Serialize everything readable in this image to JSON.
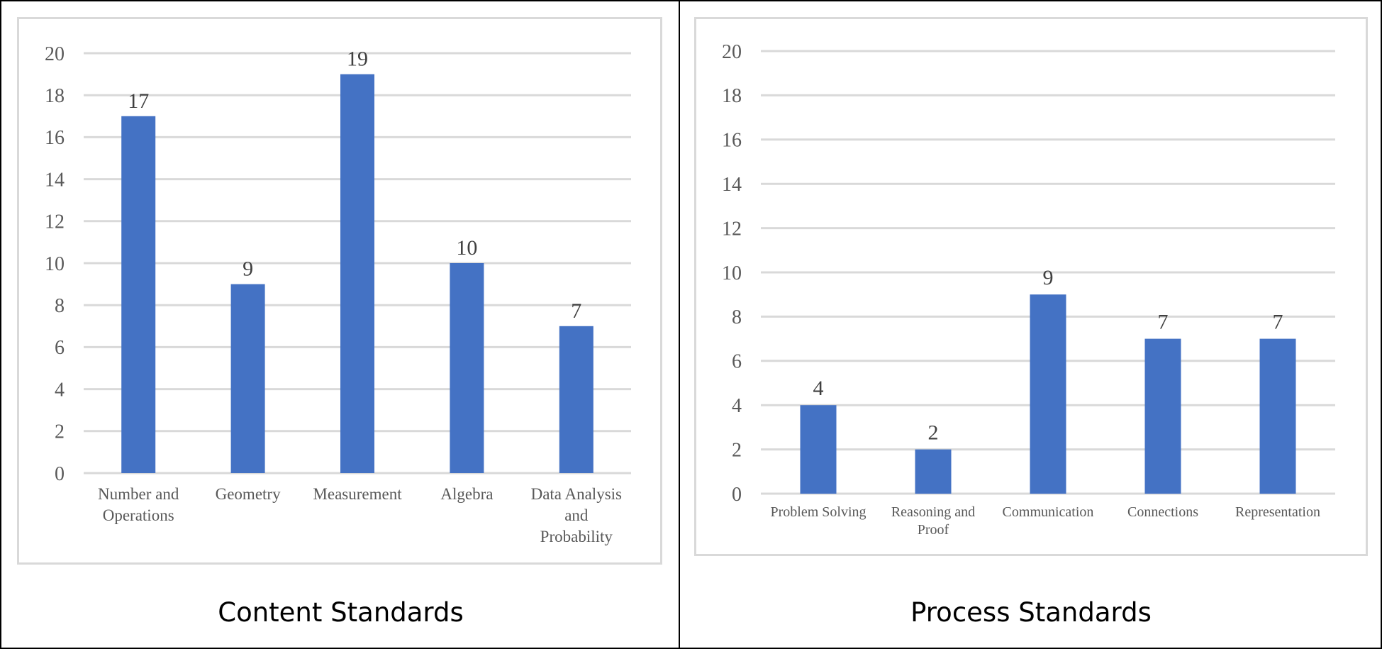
{
  "chart_data": [
    {
      "type": "bar",
      "title": "Content Standards",
      "categories": [
        "Number and Operations",
        "Geometry",
        "Measurement",
        "Algebra",
        "Data Analysis and Probability"
      ],
      "category_lines": [
        [
          "Number and",
          "Operations"
        ],
        [
          "Geometry"
        ],
        [
          "Measurement"
        ],
        [
          "Algebra"
        ],
        [
          "Data Analysis",
          "and",
          "Probability"
        ]
      ],
      "values": [
        17,
        9,
        19,
        10,
        7
      ],
      "yticks": [
        "0",
        "2",
        "4",
        "6",
        "8",
        "10",
        "12",
        "14",
        "16",
        "18",
        "20"
      ],
      "ylim": [
        0,
        20
      ],
      "grid": true,
      "bar_color": "#4472c4",
      "grid_color": "#d9d9d9",
      "data_labels": true
    },
    {
      "type": "bar",
      "title": "Process Standards",
      "categories": [
        "Problem Solving",
        "Reasoning and Proof",
        "Communication",
        "Connections",
        "Representation"
      ],
      "category_lines": [
        [
          "Problem Solving"
        ],
        [
          "Reasoning and",
          "Proof"
        ],
        [
          "Communication"
        ],
        [
          "Connections"
        ],
        [
          "Representation"
        ]
      ],
      "values": [
        4,
        2,
        9,
        7,
        7
      ],
      "yticks": [
        "0",
        "2",
        "4",
        "6",
        "8",
        "10",
        "12",
        "14",
        "16",
        "18",
        "20"
      ],
      "ylim": [
        0,
        20
      ],
      "grid": true,
      "bar_color": "#4472c4",
      "grid_color": "#d9d9d9",
      "data_labels": true
    }
  ]
}
